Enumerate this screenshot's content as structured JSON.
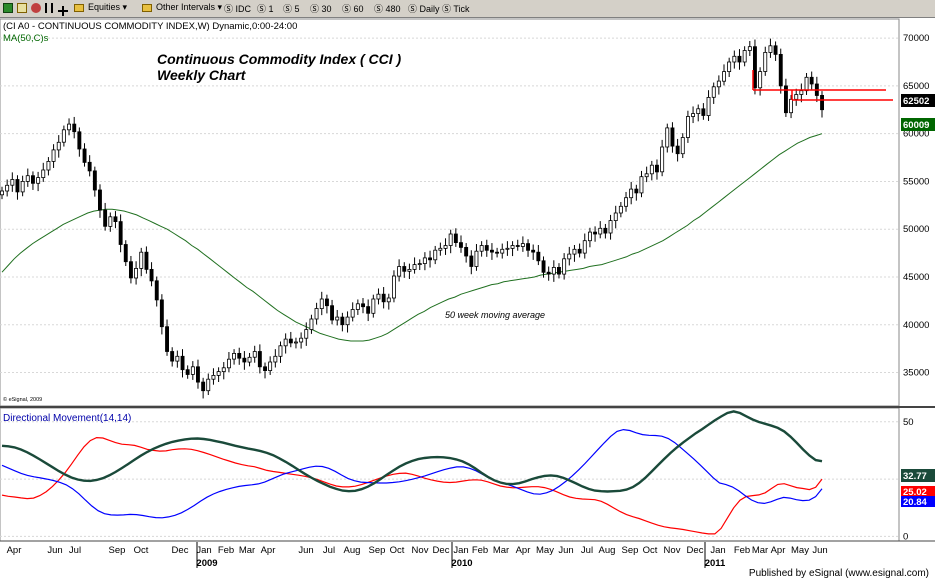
{
  "toolbar": {
    "equities": "Equities",
    "other_intervals": "Other Intervals",
    "idc": "IDC",
    "i1": "1",
    "i5": "5",
    "i30": "30",
    "i60": "60",
    "i480": "480",
    "daily": "Daily",
    "tick": "Tick",
    "colors": {
      "bg": "#d4d0c8"
    }
  },
  "price_panel": {
    "header": "(CI A0 - CONTINUOUS COMMODITY INDEX,W) Dynamic,0:00-24:00",
    "ma_label": "MA(50,C)s",
    "title_line1": "Continuous Commodity Index ( CCI )",
    "title_line2": "Weekly Chart",
    "ma_annotation": "50 week moving average",
    "copyright": "© eSignal, 2009",
    "last_price_label": "62502",
    "ma_value_label": "60009",
    "y_ticks": [
      35000,
      40000,
      45000,
      50000,
      55000,
      60000,
      65000,
      70000
    ],
    "y_tick_labels": [
      "35000",
      "40000",
      "45000",
      "50000",
      "55000",
      "60000",
      "65000",
      "70000"
    ],
    "ylim": [
      31500,
      72000
    ]
  },
  "dm_panel": {
    "label": "Directional Movement(14,14)",
    "y_ticks": [
      0,
      25,
      50
    ],
    "y_tick_labels": [
      "0",
      "25",
      "50"
    ],
    "ylim": [
      -2,
      56
    ],
    "adx_label": "32.77",
    "pdi_label": "25.02",
    "mdi_label": "20.84",
    "colors": {
      "adx": "#1a4a3a",
      "pdi": "#ff0000",
      "mdi": "#0000ff"
    }
  },
  "time_axis": {
    "month_labels": [
      "Apr",
      "Jun",
      "Jul",
      "Sep",
      "Oct",
      "Dec",
      "Jan",
      "Feb",
      "Mar",
      "Apr",
      "Jun",
      "Jul",
      "Aug",
      "Sep",
      "Oct",
      "Nov",
      "Dec",
      "Jan",
      "Feb",
      "Mar",
      "Apr",
      "May",
      "Jun",
      "Jul",
      "Aug",
      "Sep",
      "Oct",
      "Nov",
      "Dec",
      "Jan",
      "Feb",
      "Mar",
      "Apr",
      "May",
      "Jun"
    ],
    "year_labels": [
      "2009",
      "2010",
      "2011"
    ]
  },
  "footer": "Published by eSignal (www.esignal.com)",
  "chart_data": [
    {
      "type": "candlestick",
      "title": "Continuous Commodity Index ( CCI )",
      "ylim": [
        31500,
        72000
      ],
      "close": [
        54000,
        54600,
        55200,
        53900,
        55000,
        55600,
        54800,
        55400,
        56200,
        57100,
        58300,
        59100,
        60400,
        61000,
        60200,
        58400,
        57000,
        56100,
        54100,
        52000,
        50300,
        51300,
        50800,
        48400,
        46600,
        44900,
        45900,
        47600,
        45800,
        44600,
        42600,
        39800,
        37200,
        36200,
        36700,
        35300,
        34800,
        35600,
        34000,
        33100,
        34300,
        34700,
        35100,
        35500,
        36400,
        37000,
        36500,
        36100,
        36600,
        37200,
        35600,
        35200,
        36100,
        36700,
        37800,
        38500,
        38100,
        38200,
        38600,
        39500,
        40600,
        41700,
        42700,
        42000,
        40500,
        40800,
        40000,
        40800,
        41600,
        42200,
        41900,
        41200,
        42700,
        43200,
        42400,
        42800,
        45100,
        46100,
        45600,
        45800,
        46300,
        46400,
        47000,
        46800,
        47800,
        48000,
        48300,
        49500,
        48600,
        48100,
        47200,
        46100,
        47700,
        48300,
        47800,
        47600,
        47500,
        47900,
        48000,
        48300,
        48200,
        48500,
        47800,
        47600,
        46700,
        45500,
        45300,
        46000,
        45300,
        46900,
        47400,
        47900,
        47500,
        48800,
        49700,
        49500,
        50100,
        49600,
        50900,
        51700,
        52400,
        53300,
        54200,
        53800,
        55500,
        55800,
        56700,
        56000,
        58600,
        60600,
        58700,
        57900,
        59600,
        61800,
        62100,
        62600,
        61900,
        63800,
        64900,
        65500,
        66500,
        67500,
        68100,
        67500,
        68700,
        69100,
        64800,
        66500,
        68500,
        69200,
        68300,
        65000,
        62200,
        63600,
        64100,
        64500,
        65900,
        65200,
        64000,
        62500
      ]
    },
    {
      "type": "line",
      "title": "MA(50,C)s",
      "values": [
        45500,
        46200,
        46900,
        47500,
        48000,
        48500,
        48900,
        49300,
        49700,
        50100,
        50500,
        50800,
        51100,
        51400,
        51700,
        51900,
        52000,
        52100,
        52100,
        52000,
        51900,
        51700,
        51500,
        51200,
        50900,
        50600,
        50300,
        50000,
        49600,
        49200,
        48800,
        48300,
        47900,
        47400,
        46900,
        46400,
        45900,
        45400,
        44900,
        44400,
        43900,
        43500,
        43000,
        42500,
        42000,
        41500,
        41100,
        40700,
        40300,
        40000,
        39700,
        39400,
        39100,
        38900,
        38700,
        38500,
        38400,
        38300,
        38300,
        38300,
        38400,
        38600,
        38800,
        39100,
        39500,
        39900,
        40300,
        40700,
        41100,
        41400,
        41800,
        42100,
        42400,
        42700,
        42900,
        43200,
        43400,
        43600,
        43800,
        44000,
        44200,
        44300,
        44500,
        44600,
        44700,
        44800,
        44900,
        45000,
        45200,
        45300,
        45400,
        45500,
        45600,
        45700,
        45800,
        45900,
        46100,
        46200,
        46300,
        46500,
        46700,
        46900,
        47100,
        47400,
        47600,
        47900,
        48200,
        48500,
        48800,
        49200,
        49600,
        50000,
        50400,
        50900,
        51300,
        51800,
        52300,
        52800,
        53300,
        53800,
        54300,
        54800,
        55300,
        55800,
        56300,
        56800,
        57300,
        57800,
        58200,
        58600,
        59000,
        59300,
        59600,
        59800,
        60000
      ]
    },
    {
      "type": "line",
      "title": "Directional Movement(14,14)",
      "ylim": [
        -2,
        56
      ],
      "series": [
        {
          "name": "ADX",
          "values": [
            39.5,
            39.3,
            38.8,
            37.9,
            36.7,
            35.2,
            33.6,
            31.9,
            30.2,
            28.5,
            27.0,
            25.7,
            24.8,
            24.3,
            24.2,
            24.6,
            25.4,
            26.6,
            28.1,
            29.8,
            31.6,
            33.4,
            35.2,
            36.8,
            38.2,
            39.4,
            40.4,
            41.2,
            41.8,
            42.3,
            42.6,
            42.7,
            42.5,
            42.1,
            41.5,
            40.9,
            40.2,
            39.5,
            38.9,
            38.3,
            37.8,
            37.2,
            36.4,
            35.4,
            34.0,
            32.5,
            30.8,
            29.0,
            27.3,
            25.7,
            24.2,
            22.9,
            21.7,
            20.7,
            20.0,
            19.7,
            19.9,
            20.6,
            21.7,
            23.2,
            25.0,
            26.9,
            28.7,
            30.4,
            31.8,
            32.9,
            33.7,
            34.2,
            34.5,
            34.6,
            34.5,
            34.2,
            33.6,
            32.7,
            31.4,
            29.7,
            27.8,
            26.0,
            24.5,
            23.5,
            22.9,
            22.8,
            23.2,
            24.0,
            25.0,
            25.8,
            26.4,
            26.6,
            26.3,
            25.5,
            24.4,
            23.1,
            21.8,
            20.7,
            20.0,
            19.7,
            19.6,
            19.7,
            19.9,
            20.4,
            21.5,
            23.3,
            25.6,
            28.3,
            31.1,
            33.8,
            36.4,
            38.8,
            41.0,
            43.0,
            45.0,
            46.8,
            48.7,
            50.6,
            52.3,
            53.8,
            54.5,
            53.8,
            52.4,
            51.0,
            49.9,
            49.1,
            48.3,
            47.3,
            45.8,
            43.5,
            40.8,
            37.9,
            35.3,
            33.3,
            32.8
          ]
        },
        {
          "name": "+DI",
          "values": [
            18.0,
            17.5,
            17.2,
            16.8,
            16.5,
            16.7,
            17.8,
            19.5,
            21.8,
            24.6,
            27.8,
            31.5,
            35.4,
            39.1,
            41.8,
            43.1,
            42.9,
            41.9,
            40.9,
            40.2,
            40.0,
            39.7,
            38.9,
            38.0,
            37.5,
            37.2,
            37.3,
            37.8,
            38.1,
            38.2,
            38.0,
            37.4,
            36.6,
            35.7,
            34.7,
            33.7,
            32.9,
            32.0,
            31.3,
            30.8,
            30.4,
            29.6,
            28.8,
            28.3,
            27.9,
            27.5,
            27.1,
            26.7,
            26.2,
            25.6,
            24.8,
            23.8,
            22.8,
            22.0,
            21.6,
            21.6,
            21.9,
            22.6,
            23.5,
            24.5,
            25.5,
            26.4,
            27.1,
            27.5,
            27.6,
            27.1,
            26.3,
            25.4,
            24.7,
            24.1,
            23.7,
            23.5,
            23.7,
            24.1,
            24.5,
            24.7,
            24.5,
            23.8,
            22.9,
            22.0,
            21.5,
            21.2,
            21.3,
            21.5,
            21.7,
            21.7,
            21.3,
            20.5,
            19.4,
            18.2,
            17.2,
            16.6,
            16.3,
            16.2,
            16.0,
            15.3,
            14.0,
            12.4,
            10.8,
            9.5,
            8.6,
            7.8,
            6.8,
            5.8,
            4.9,
            4.2,
            3.7,
            3.4,
            3.0,
            2.5,
            2.0,
            1.5,
            1.1,
            1.1,
            3.5,
            8.0,
            12.5,
            15.8,
            17.4,
            17.8,
            18.1,
            19.0,
            20.9,
            22.7,
            23.0,
            22.1,
            21.3,
            20.9,
            20.4,
            21.4,
            25.0
          ]
        },
        {
          "name": "-DI",
          "values": [
            31.0,
            29.8,
            28.6,
            27.5,
            26.6,
            26.0,
            25.5,
            25.0,
            24.4,
            23.6,
            22.5,
            20.8,
            18.6,
            15.9,
            13.3,
            11.2,
            9.9,
            9.4,
            9.3,
            9.4,
            9.6,
            9.5,
            9.1,
            8.6,
            8.2,
            8.1,
            8.5,
            9.2,
            10.3,
            11.8,
            13.5,
            15.4,
            17.1,
            18.5,
            19.6,
            20.5,
            21.2,
            21.8,
            22.2,
            22.5,
            22.9,
            23.7,
            24.9,
            26.1,
            27.2,
            28.0,
            28.7,
            29.5,
            30.2,
            30.6,
            30.5,
            29.7,
            28.4,
            26.8,
            25.3,
            24.3,
            23.7,
            23.5,
            23.4,
            23.3,
            23.3,
            23.5,
            23.8,
            24.3,
            24.9,
            25.6,
            26.4,
            27.3,
            28.2,
            29.1,
            29.8,
            30.3,
            30.3,
            29.7,
            28.6,
            27.1,
            25.6,
            24.4,
            23.4,
            22.6,
            21.6,
            20.5,
            19.4,
            18.6,
            18.4,
            19.0,
            20.1,
            21.9,
            24.0,
            26.4,
            29.0,
            31.8,
            34.8,
            37.8,
            40.8,
            43.6,
            45.8,
            46.6,
            46.2,
            45.2,
            44.4,
            44.1,
            44.0,
            43.7,
            42.7,
            40.9,
            38.6,
            36.2,
            33.7,
            31.1,
            28.4,
            25.6,
            23.3,
            22.6,
            21.6,
            19.9,
            17.8,
            15.9,
            14.7,
            14.4,
            15.1,
            16.2,
            17.0,
            16.7,
            16.0,
            15.6,
            15.8,
            17.3,
            20.8
          ]
        }
      ]
    }
  ]
}
